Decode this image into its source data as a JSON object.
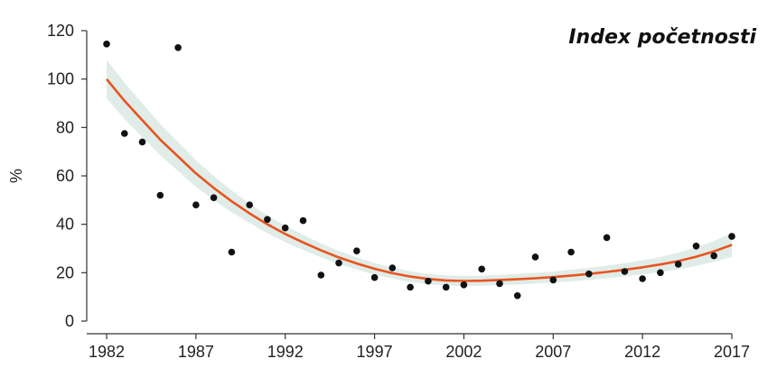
{
  "chart_data": {
    "type": "scatter",
    "title": "Index početnosti",
    "xlabel": "",
    "ylabel": "%",
    "xlim": [
      1982,
      2017
    ],
    "ylim": [
      0,
      120
    ],
    "x_ticks": [
      "1982",
      "1987",
      "1992",
      "1997",
      "2002",
      "2007",
      "2012",
      "2017"
    ],
    "y_ticks": [
      "0",
      "20",
      "40",
      "60",
      "80",
      "100",
      "120"
    ],
    "grid": false,
    "colors": {
      "points": "#111111",
      "trend": "#e8541e",
      "band": "#dbe9e4"
    },
    "series": [
      {
        "kind": "points",
        "x": [
          1982,
          1983,
          1984,
          1985,
          1986,
          1987,
          1988,
          1989,
          1990,
          1991,
          1992,
          1993,
          1994,
          1995,
          1996,
          1997,
          1998,
          1999,
          2000,
          2001,
          2002,
          2003,
          2004,
          2005,
          2006,
          2007,
          2008,
          2009,
          2010,
          2011,
          2012,
          2013,
          2014,
          2015,
          2016,
          2017
        ],
        "y": [
          114.5,
          77.5,
          74,
          52,
          113,
          48,
          51,
          28.5,
          48,
          42,
          38.5,
          41.5,
          19,
          24,
          29,
          18,
          22,
          14,
          16.5,
          14,
          15,
          21.5,
          15.5,
          10.5,
          26.5,
          17,
          28.5,
          19.5,
          34.5,
          20.5,
          17.5,
          20,
          23.5,
          31,
          27,
          35
        ]
      },
      {
        "kind": "trend",
        "x": [
          1982,
          1983,
          1984,
          1985,
          1986,
          1987,
          1988,
          1989,
          1990,
          1991,
          1992,
          1993,
          1994,
          1995,
          1996,
          1997,
          1998,
          1999,
          2000,
          2001,
          2002,
          2003,
          2004,
          2005,
          2006,
          2007,
          2008,
          2009,
          2010,
          2011,
          2012,
          2013,
          2014,
          2015,
          2016,
          2017
        ],
        "y": [
          100,
          91,
          83,
          75,
          68,
          61,
          55,
          49.5,
          44.5,
          40,
          36,
          32.5,
          29.2,
          26.3,
          23.8,
          21.6,
          19.8,
          18.4,
          17.4,
          16.8,
          16.6,
          16.7,
          17,
          17.3,
          17.7,
          18.2,
          18.8,
          19.5,
          20.3,
          21.2,
          22.2,
          23.4,
          24.8,
          26.6,
          28.8,
          31.5
        ],
        "band_half_width": [
          8,
          7.5,
          7,
          6.5,
          6,
          5.5,
          5,
          4.5,
          4,
          3.7,
          3.4,
          3.1,
          2.9,
          2.7,
          2.5,
          2.4,
          2.3,
          2.2,
          2.1,
          2.1,
          2.1,
          2.1,
          2.1,
          2.2,
          2.2,
          2.3,
          2.4,
          2.5,
          2.6,
          2.7,
          2.9,
          3.1,
          3.4,
          3.8,
          4.3,
          5
        ]
      }
    ]
  }
}
